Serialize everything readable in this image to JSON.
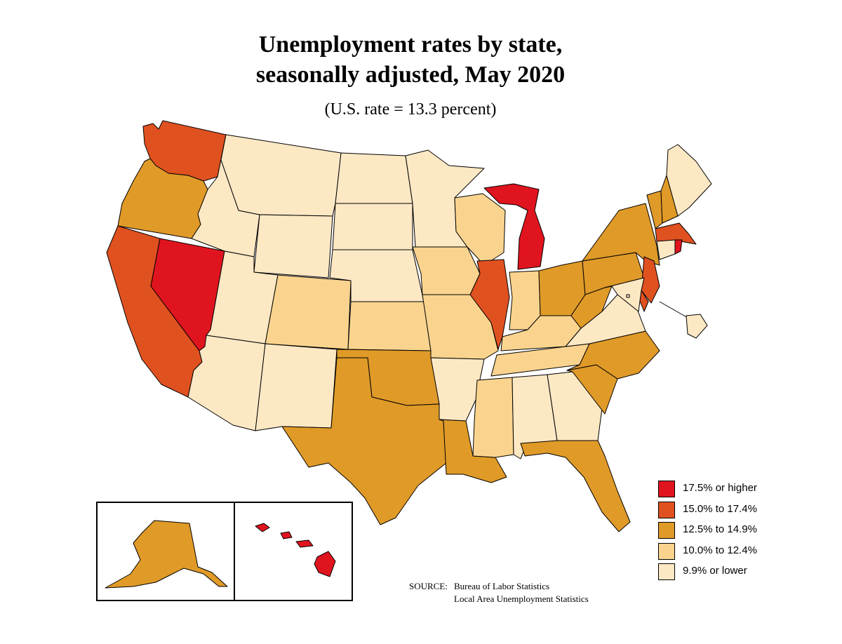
{
  "title_line1": "Unemployment rates by state,",
  "title_line2": "seasonally adjusted, May 2020",
  "subtitle": "(U.S. rate = 13.3 percent)",
  "legend": [
    {
      "label": "17.5% or higher",
      "color": "#e0141f"
    },
    {
      "label": "15.0% to 17.4%",
      "color": "#e05120"
    },
    {
      "label": "12.5% to 14.9%",
      "color": "#e09a28"
    },
    {
      "label": "10.0% to 12.4%",
      "color": "#fad48e"
    },
    {
      "label": "9.9% or lower",
      "color": "#fde8c4"
    }
  ],
  "states": {
    "WA": 3,
    "OR": 2,
    "CA": 3,
    "NV": 4,
    "ID": 0,
    "MT": 0,
    "WY": 0,
    "UT": 0,
    "AZ": 0,
    "CO": 1,
    "NM": 0,
    "ND": 0,
    "SD": 0,
    "NE": 0,
    "KS": 1,
    "OK": 2,
    "TX": 2,
    "MN": 0,
    "IA": 1,
    "MO": 1,
    "AR": 0,
    "LA": 2,
    "WI": 1,
    "IL": 3,
    "MI": 4,
    "IN": 1,
    "OH": 2,
    "KY": 1,
    "TN": 1,
    "MS": 1,
    "AL": 0,
    "GA": 0,
    "FL": 2,
    "SC": 2,
    "NC": 2,
    "VA": 0,
    "WV": 2,
    "PA": 2,
    "NY": 2,
    "VT": 2,
    "NH": 2,
    "ME": 0,
    "MA": 3,
    "RI": 4,
    "CT": 0,
    "NJ": 3,
    "DE": 3,
    "MD": 0,
    "DC": 0,
    "AK": 2,
    "HI": 4
  },
  "source_label": "SOURCE:",
  "source_line1": "Bureau of Labor Statistics",
  "source_line2": "Local Area Unemployment Statistics"
}
